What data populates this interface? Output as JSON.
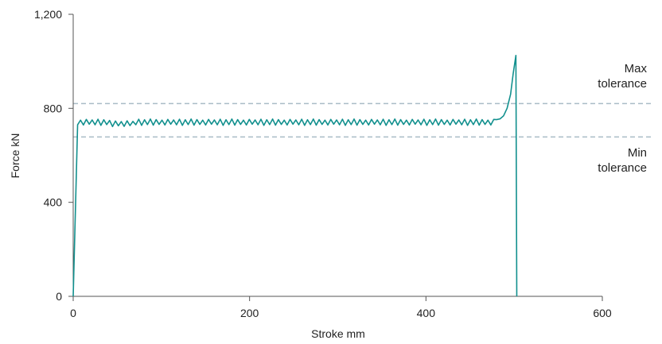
{
  "chart_data": {
    "type": "line",
    "title": "",
    "xlabel": "Stroke mm",
    "ylabel": "Force kN",
    "xlim": [
      0,
      600
    ],
    "ylim": [
      0,
      1200
    ],
    "x_ticks": [
      0,
      200,
      400,
      600
    ],
    "x_tick_labels": [
      "0",
      "200",
      "400",
      "600"
    ],
    "y_ticks": [
      0,
      400,
      800,
      1200
    ],
    "y_tick_labels": [
      "0",
      "400",
      "800",
      "1,200"
    ],
    "grid": false,
    "line_color": "#12908e",
    "tolerance_color": "#a9bcc6",
    "reference_lines": [
      {
        "label_line1": "Max",
        "label_line2": "tolerance",
        "value": 820
      },
      {
        "label_line1": "Min",
        "label_line2": "tolerance",
        "value": 678
      }
    ],
    "series": [
      {
        "ramp_start": [
          [
            0,
            0
          ],
          [
            5,
            730
          ]
        ],
        "plateau": {
          "x_start": 5,
          "x_end": 480,
          "step": 3.3,
          "base": 740,
          "high": 752,
          "low": 730
        },
        "peak_rise": [
          [
            480,
            752
          ],
          [
            484,
            755
          ],
          [
            488,
            768
          ],
          [
            492,
            800
          ],
          [
            496,
            860
          ],
          [
            499,
            950
          ],
          [
            502,
            1025
          ]
        ],
        "drop": [
          [
            503,
            0
          ]
        ]
      }
    ]
  }
}
